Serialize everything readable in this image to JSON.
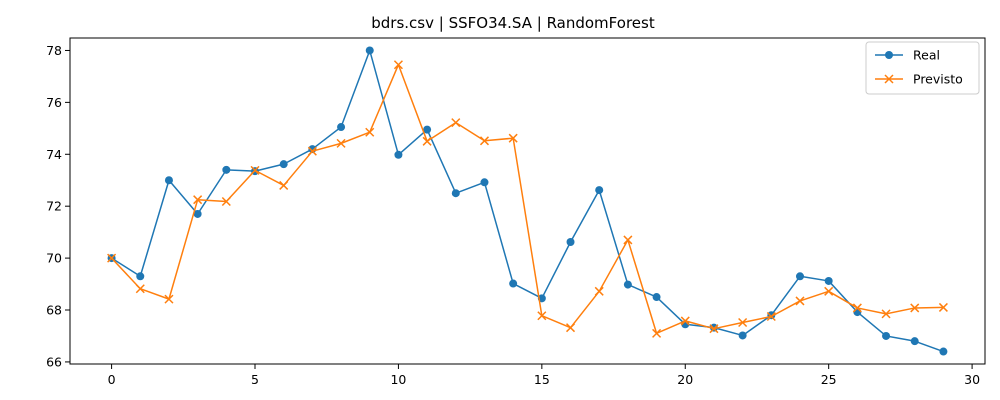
{
  "chart_data": {
    "type": "line",
    "title": "bdrs.csv | SSFO34.SA | RandomForest",
    "xlabel": "",
    "ylabel": "",
    "x": [
      0,
      1,
      2,
      3,
      4,
      5,
      6,
      7,
      8,
      9,
      10,
      11,
      12,
      13,
      14,
      15,
      16,
      17,
      18,
      19,
      20,
      21,
      22,
      23,
      24,
      25,
      26,
      27,
      28,
      29
    ],
    "xlim": [
      -1.45,
      30.45
    ],
    "ylim": [
      65.92,
      78.48
    ],
    "xticks": [
      0,
      5,
      10,
      15,
      20,
      25,
      30
    ],
    "yticks": [
      66,
      68,
      70,
      72,
      74,
      76,
      78
    ],
    "xtick_labels": [
      "0",
      "5",
      "10",
      "15",
      "20",
      "25",
      "30"
    ],
    "ytick_labels": [
      "66",
      "68",
      "70",
      "72",
      "74",
      "76",
      "78"
    ],
    "grid": false,
    "legend_position": "top-right",
    "series": [
      {
        "name": "Real",
        "color": "#1f77b4",
        "marker": "circle",
        "values": [
          70.0,
          69.3,
          73.0,
          71.7,
          73.4,
          73.35,
          73.62,
          74.2,
          75.05,
          78.0,
          73.98,
          74.95,
          72.5,
          72.92,
          69.02,
          68.45,
          70.62,
          72.62,
          68.98,
          68.5,
          67.45,
          67.32,
          67.02,
          67.8,
          69.3,
          69.12,
          67.92,
          67.0,
          66.8,
          66.4
        ]
      },
      {
        "name": "Previsto",
        "color": "#ff7f0e",
        "marker": "x",
        "values": [
          70.0,
          68.82,
          68.42,
          72.25,
          72.18,
          73.38,
          72.8,
          74.12,
          74.42,
          74.85,
          77.45,
          74.5,
          75.22,
          74.52,
          74.62,
          67.78,
          67.32,
          68.72,
          70.7,
          67.1,
          67.58,
          67.28,
          67.52,
          67.75,
          68.35,
          68.72,
          68.08,
          67.85,
          68.08,
          68.1
        ]
      }
    ]
  }
}
